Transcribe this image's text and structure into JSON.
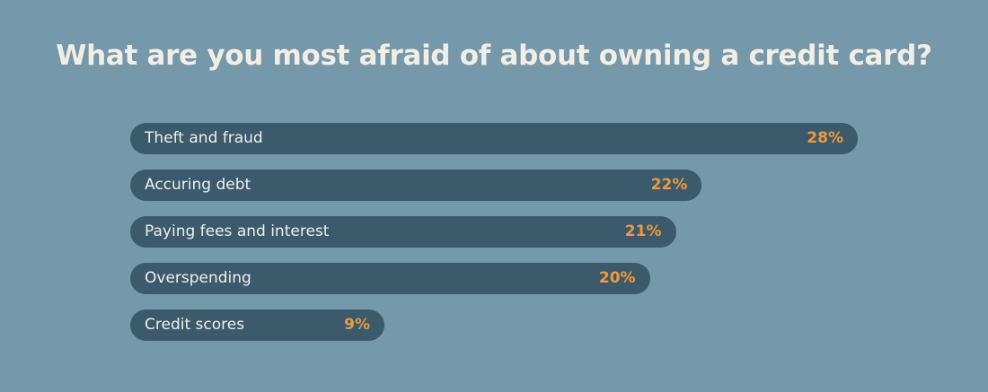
{
  "chart_data": {
    "type": "bar",
    "orientation": "horizontal",
    "title": "What are you most afraid of about owning a credit card?",
    "categories": [
      "Theft and fraud",
      "Accuring debt",
      "Paying fees and interest",
      "Overspending",
      "Credit scores"
    ],
    "values": [
      28,
      22,
      21,
      20,
      9
    ],
    "value_labels": [
      "28%",
      "22%",
      "21%",
      "20%",
      "9%"
    ],
    "unit": "%",
    "grid": false,
    "colors": {
      "background": "#7598aa",
      "bar": "#3b5a6c",
      "value_text": "#ec9a3c",
      "title": "#f1eee6"
    }
  }
}
